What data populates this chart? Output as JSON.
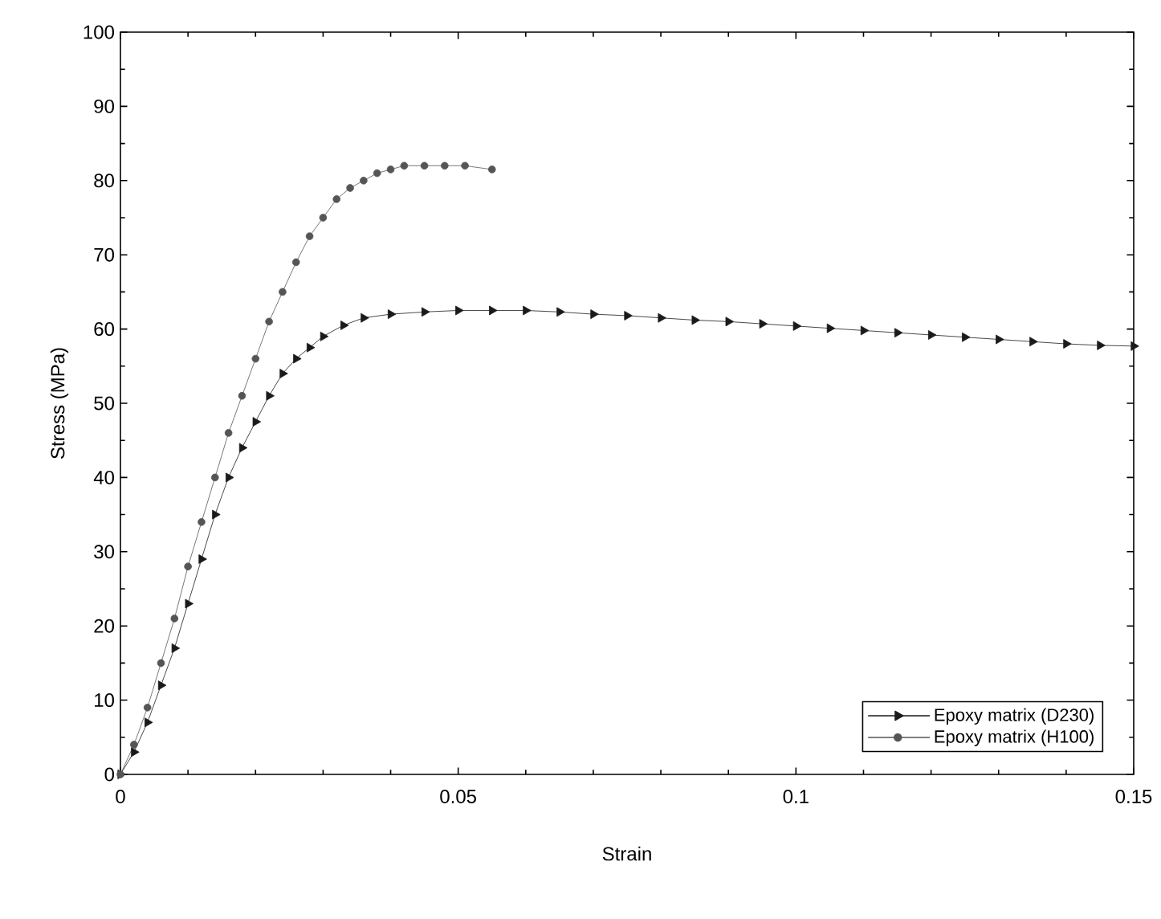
{
  "chart_data": {
    "type": "line",
    "xlabel": "Strain",
    "ylabel": "Stress (MPa)",
    "xlim": [
      0,
      0.15
    ],
    "ylim": [
      0,
      100
    ],
    "xticks": [
      0,
      0.05,
      0.1,
      0.15
    ],
    "yticks": [
      0,
      10,
      20,
      30,
      40,
      50,
      60,
      70,
      80,
      90,
      100
    ],
    "grid": false,
    "legend": "bottom right",
    "line_style": "solid",
    "series": [
      {
        "name": "Epoxy matrix (D230)",
        "color": "#1a1a1a",
        "marker": "triangle",
        "x": [
          0,
          0.002,
          0.004,
          0.006,
          0.008,
          0.01,
          0.012,
          0.014,
          0.016,
          0.018,
          0.02,
          0.022,
          0.024,
          0.026,
          0.028,
          0.03,
          0.033,
          0.036,
          0.04,
          0.045,
          0.05,
          0.055,
          0.06,
          0.065,
          0.07,
          0.075,
          0.08,
          0.085,
          0.09,
          0.095,
          0.1,
          0.105,
          0.11,
          0.115,
          0.12,
          0.125,
          0.13,
          0.135,
          0.14,
          0.145,
          0.15
        ],
        "values": [
          0,
          3,
          7,
          12,
          17,
          23,
          29,
          35,
          40,
          44,
          47.5,
          51,
          54,
          56,
          57.5,
          59,
          60.5,
          61.5,
          62,
          62.3,
          62.5,
          62.5,
          62.5,
          62.3,
          62,
          61.8,
          61.5,
          61.2,
          61,
          60.7,
          60.4,
          60.1,
          59.8,
          59.5,
          59.2,
          58.9,
          58.6,
          58.3,
          58,
          57.8,
          57.7
        ]
      },
      {
        "name": "Epoxy matrix (H100)",
        "color": "#555555",
        "marker": "circle",
        "x": [
          0,
          0.002,
          0.004,
          0.006,
          0.008,
          0.01,
          0.012,
          0.014,
          0.016,
          0.018,
          0.02,
          0.022,
          0.024,
          0.026,
          0.028,
          0.03,
          0.032,
          0.034,
          0.036,
          0.038,
          0.04,
          0.042,
          0.045,
          0.048,
          0.051,
          0.055
        ],
        "values": [
          0,
          4,
          9,
          15,
          21,
          28,
          34,
          40,
          46,
          51,
          56,
          61,
          65,
          69,
          72.5,
          75,
          77.5,
          79,
          80,
          81,
          81.5,
          82,
          82,
          82,
          82,
          81.5
        ]
      }
    ]
  }
}
